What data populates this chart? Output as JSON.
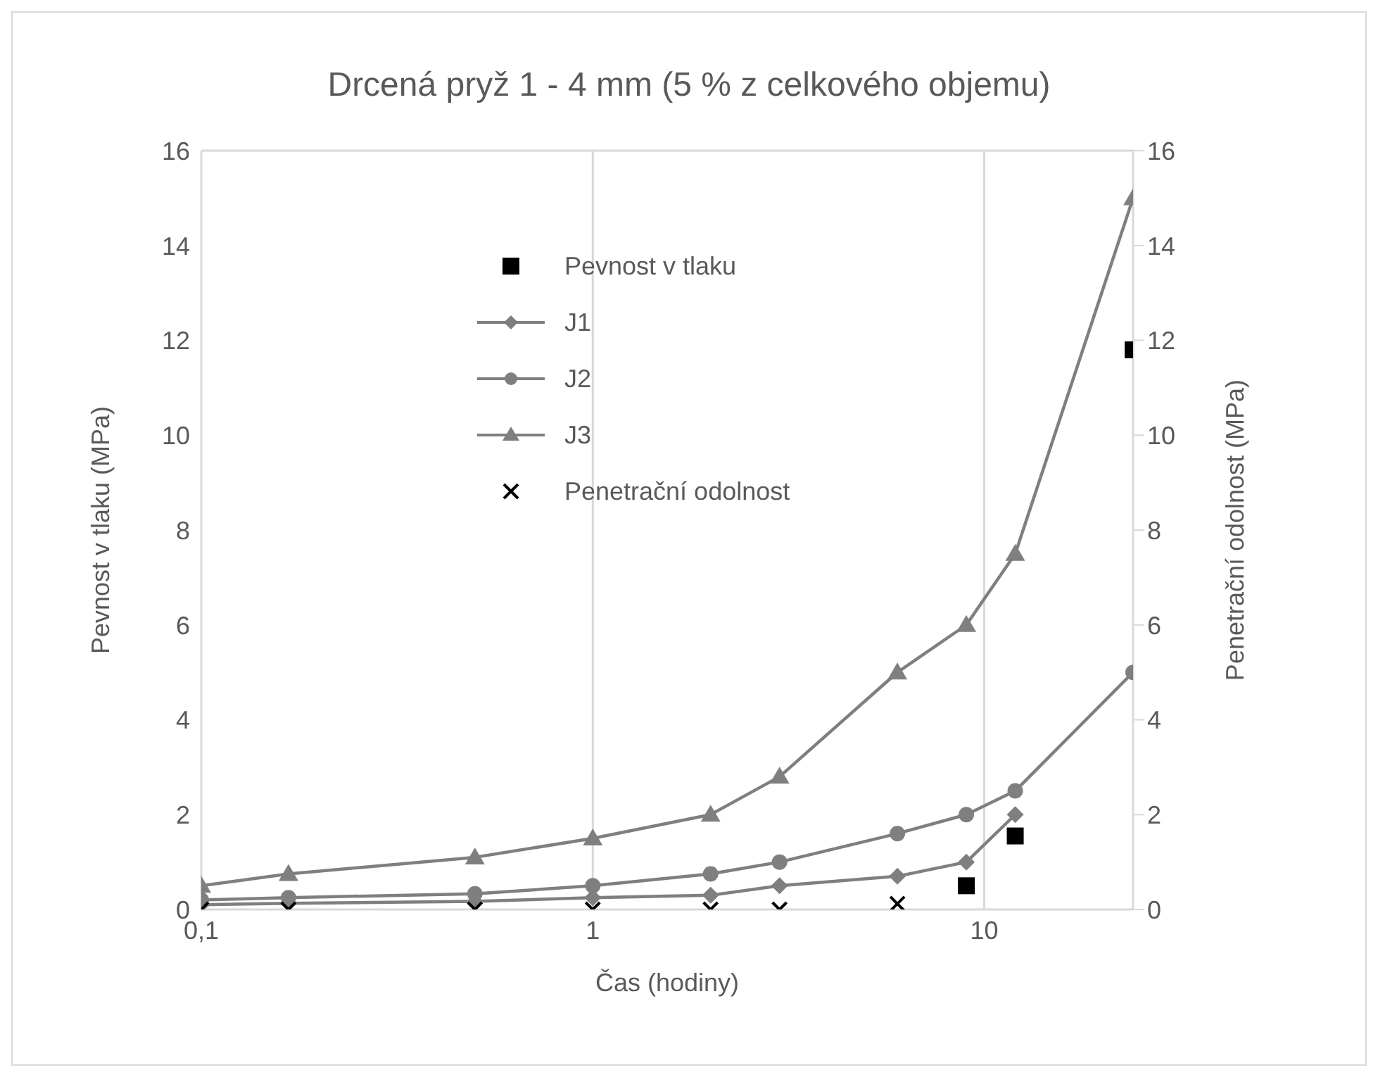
{
  "chart_data": {
    "type": "line",
    "title": "Drcená pryž 1 - 4 mm (5 % z celkového objemu)",
    "xlabel": "Čas (hodiny)",
    "ylabel": "Pevnost v tlaku (MPa)",
    "y2label": "Penetrační odolnost (MPa)",
    "log": "x",
    "xlim": [
      0.1,
      24
    ],
    "xticks": [
      {
        "value": 0.1,
        "label": "0,1"
      },
      1,
      10
    ],
    "ylim": [
      0,
      16
    ],
    "yticks": [
      0,
      2,
      4,
      6,
      8,
      10,
      12,
      14,
      16
    ],
    "y2lim": [
      0,
      16
    ],
    "y2ticks": [
      0,
      2,
      4,
      6,
      8,
      10,
      12,
      14,
      16
    ],
    "grid": true,
    "legend": "top",
    "series": [
      {
        "name": "Pevnost v tlaku",
        "type": "scatter",
        "marker": "square",
        "color": "#000000",
        "x": [
          9,
          12,
          24
        ],
        "values": [
          0.5,
          1.55,
          11.8
        ]
      },
      {
        "name": "J1",
        "marker": "diamond",
        "color": "#7f7f7f",
        "x": [
          0.1,
          0.167,
          0.5,
          1,
          2,
          3,
          6,
          9,
          12
        ],
        "values": [
          0.1,
          0.13,
          0.17,
          0.25,
          0.3,
          0.5,
          0.7,
          1,
          2
        ]
      },
      {
        "name": "J2",
        "marker": "circle",
        "color": "#7f7f7f",
        "x": [
          0.1,
          0.167,
          0.5,
          1,
          2,
          3,
          6,
          9,
          12,
          24
        ],
        "values": [
          0.2,
          0.25,
          0.33,
          0.5,
          0.75,
          1,
          1.6,
          2,
          2.5,
          5
        ]
      },
      {
        "name": "J3",
        "marker": "triangle",
        "color": "#7f7f7f",
        "x": [
          0.1,
          0.167,
          0.5,
          1,
          2,
          3,
          6,
          9,
          12,
          24
        ],
        "values": [
          0.5,
          0.75,
          1.1,
          1.5,
          2,
          2.8,
          5,
          6,
          7.5,
          15
        ]
      },
      {
        "name": "Penetrační odolnost",
        "type": "scatter",
        "marker": "cross",
        "axis": "y2",
        "color": "#000000",
        "x": [
          0.1,
          0.167,
          0.5,
          1,
          2,
          3,
          6
        ],
        "values": [
          0,
          0,
          0,
          0,
          0,
          0,
          0.12
        ]
      }
    ]
  }
}
